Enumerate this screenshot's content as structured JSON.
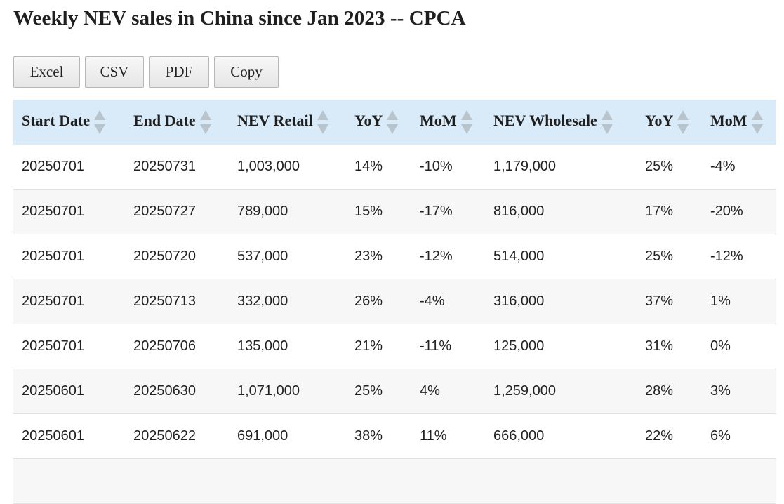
{
  "page": {
    "title": "Weekly NEV sales in China since Jan 2023 -- CPCA"
  },
  "toolbar": {
    "buttons": [
      {
        "label": "Excel"
      },
      {
        "label": "CSV"
      },
      {
        "label": "PDF"
      },
      {
        "label": "Copy"
      }
    ]
  },
  "table": {
    "columns": [
      "Start Date",
      "End Date",
      "NEV Retail",
      "YoY",
      "MoM",
      "NEV Wholesale",
      "YoY",
      "MoM"
    ],
    "rows": [
      [
        "20250701",
        "20250731",
        "1,003,000",
        "14%",
        "-10%",
        "1,179,000",
        "25%",
        "-4%"
      ],
      [
        "20250701",
        "20250727",
        "789,000",
        "15%",
        "-17%",
        "816,000",
        "17%",
        "-20%"
      ],
      [
        "20250701",
        "20250720",
        "537,000",
        "23%",
        "-12%",
        "514,000",
        "25%",
        "-12%"
      ],
      [
        "20250701",
        "20250713",
        "332,000",
        "26%",
        "-4%",
        "316,000",
        "37%",
        "1%"
      ],
      [
        "20250701",
        "20250706",
        "135,000",
        "21%",
        "-11%",
        "125,000",
        "31%",
        "0%"
      ],
      [
        "20250601",
        "20250630",
        "1,071,000",
        "25%",
        "4%",
        "1,259,000",
        "28%",
        "3%"
      ],
      [
        "20250601",
        "20250622",
        "691,000",
        "38%",
        "11%",
        "666,000",
        "22%",
        "6%"
      ]
    ]
  }
}
